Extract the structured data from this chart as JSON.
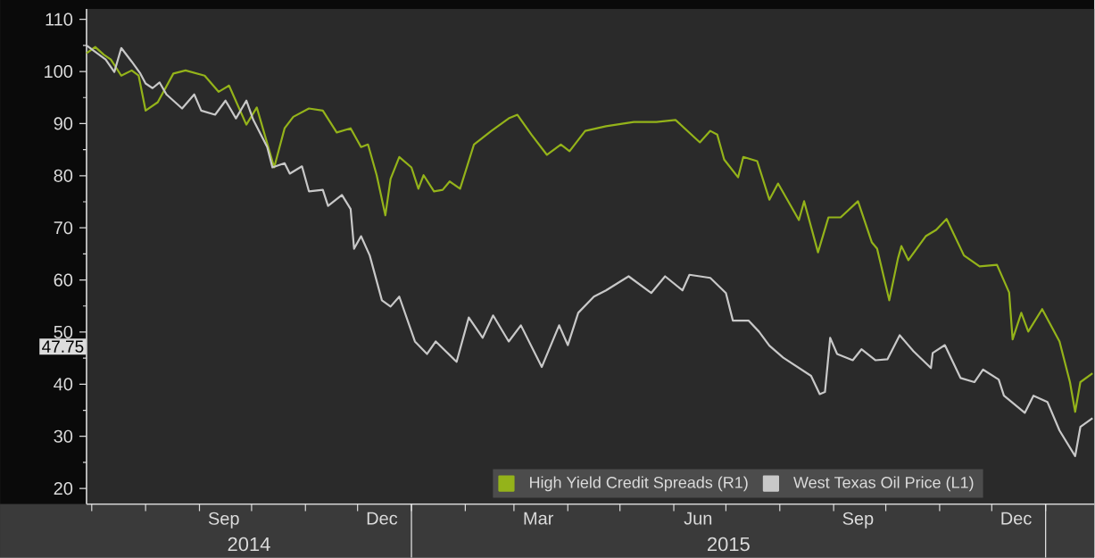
{
  "chart_data": {
    "type": "line",
    "legend": "bottom right",
    "xlim": [
      "2014-06-28",
      "2016-01-29"
    ],
    "ylim": [
      17,
      112
    ],
    "yticks": [
      20,
      30,
      40,
      50,
      60,
      70,
      80,
      90,
      100,
      110
    ],
    "xticks": [
      {
        "value": "2014-07-01",
        "label": null
      },
      {
        "value": "2014-08-01",
        "label": null
      },
      {
        "value": "2014-09-01",
        "label": null
      },
      {
        "value": "2014-10-01",
        "label": null
      },
      {
        "value": "2014-11-01",
        "label": null
      },
      {
        "value": "2014-12-01",
        "label": null
      },
      {
        "value": "2015-01-01",
        "label": null
      },
      {
        "value": "2015-02-01",
        "label": null
      },
      {
        "value": "2015-03-01",
        "label": null
      },
      {
        "value": "2015-04-01",
        "label": null
      },
      {
        "value": "2015-05-01",
        "label": null
      },
      {
        "value": "2015-06-01",
        "label": null
      },
      {
        "value": "2015-07-01",
        "label": null
      },
      {
        "value": "2015-08-01",
        "label": null
      },
      {
        "value": "2015-09-01",
        "label": null
      },
      {
        "value": "2015-10-01",
        "label": null
      },
      {
        "value": "2015-11-01",
        "label": null
      },
      {
        "value": "2015-12-01",
        "label": null
      },
      {
        "value": "2016-01-01",
        "label": null
      },
      {
        "value": "2014-09-15",
        "label": "Sep"
      },
      {
        "value": "2014-12-15",
        "label": "Dec"
      },
      {
        "value": "2015-03-15",
        "label": "Mar"
      },
      {
        "value": "2015-06-15",
        "label": "Jun"
      },
      {
        "value": "2015-09-15",
        "label": "Sep"
      },
      {
        "value": "2015-12-15",
        "label": "Dec"
      }
    ],
    "annotations": [
      "47.75",
      "2014",
      "2015"
    ],
    "series": [
      {
        "name": "High Yield Credit Spreads (R1)",
        "color": "#94b31a",
        "x": [
          "2014-06-28",
          "2014-07-03",
          "2014-07-08",
          "2014-07-12",
          "2014-07-18",
          "2014-07-24",
          "2014-07-28",
          "2014-08-01",
          "2014-08-08",
          "2014-08-17",
          "2014-08-24",
          "2014-09-04",
          "2014-09-12",
          "2014-09-18",
          "2014-09-28",
          "2014-10-04",
          "2014-10-14",
          "2014-10-20",
          "2014-10-25",
          "2014-11-03",
          "2014-11-11",
          "2014-11-19",
          "2014-11-27",
          "2014-12-03",
          "2014-12-07",
          "2014-12-12",
          "2014-12-17",
          "2014-12-20",
          "2014-12-25",
          "2015-01-01",
          "2015-01-05",
          "2015-01-08",
          "2015-01-14",
          "2015-01-19",
          "2015-01-23",
          "2015-01-29",
          "2015-02-06",
          "2015-02-16",
          "2015-02-26",
          "2015-03-03",
          "2015-03-11",
          "2015-03-20",
          "2015-03-28",
          "2015-04-02",
          "2015-04-11",
          "2015-04-23",
          "2015-05-09",
          "2015-05-22",
          "2015-06-02",
          "2015-06-16",
          "2015-06-22",
          "2015-06-26",
          "2015-06-30",
          "2015-07-08",
          "2015-07-11",
          "2015-07-19",
          "2015-07-26",
          "2015-07-31",
          "2015-08-12",
          "2015-08-15",
          "2015-08-23",
          "2015-08-29",
          "2015-09-05",
          "2015-09-15",
          "2015-09-23",
          "2015-09-26",
          "2015-10-03",
          "2015-10-08",
          "2015-10-10",
          "2015-10-14",
          "2015-10-24",
          "2015-10-30",
          "2015-11-05",
          "2015-11-15",
          "2015-11-24",
          "2015-12-04",
          "2015-12-11",
          "2015-12-13",
          "2015-12-18",
          "2015-12-22",
          "2015-12-30",
          "2016-01-09",
          "2016-01-15",
          "2016-01-18",
          "2016-01-21",
          "2016-01-28"
        ],
        "values": [
          103.5,
          104.7,
          103.2,
          102.3,
          99.2,
          100.2,
          99.2,
          92.5,
          94.1,
          99.6,
          100.2,
          99.2,
          96.1,
          97.3,
          89.8,
          93.1,
          81.6,
          89.1,
          91.3,
          92.9,
          92.5,
          88.3,
          89.1,
          85.5,
          86.0,
          80.1,
          72.4,
          79.4,
          83.6,
          81.6,
          77.5,
          80.1,
          77.0,
          77.3,
          78.9,
          77.5,
          86.0,
          88.6,
          91.0,
          91.7,
          87.9,
          84.0,
          86.0,
          84.7,
          88.6,
          89.5,
          90.3,
          90.3,
          90.7,
          86.4,
          88.6,
          87.9,
          83.1,
          79.7,
          83.6,
          82.8,
          75.4,
          78.5,
          71.5,
          75.1,
          65.3,
          72.0,
          72.0,
          75.1,
          67.2,
          66.0,
          56.1,
          64.1,
          66.5,
          63.8,
          68.4,
          69.6,
          71.7,
          64.7,
          62.6,
          62.9,
          57.6,
          48.6,
          53.7,
          50.1,
          54.4,
          48.2,
          40.4,
          34.7,
          40.4,
          42.1
        ]
      },
      {
        "name": "West Texas Oil Price (L1)",
        "color": "#c8c8c8",
        "x": [
          "2014-06-28",
          "2014-07-09",
          "2014-07-14",
          "2014-07-18",
          "2014-07-24",
          "2014-07-29",
          "2014-08-01",
          "2014-08-05",
          "2014-08-09",
          "2014-08-13",
          "2014-08-18",
          "2014-08-22",
          "2014-08-29",
          "2014-09-02",
          "2014-09-10",
          "2014-09-16",
          "2014-09-22",
          "2014-09-28",
          "2014-10-02",
          "2014-10-10",
          "2014-10-13",
          "2014-10-20",
          "2014-10-23",
          "2014-10-30",
          "2014-11-03",
          "2014-11-11",
          "2014-11-14",
          "2014-11-22",
          "2014-11-27",
          "2014-11-29",
          "2014-12-03",
          "2014-12-08",
          "2014-12-15",
          "2014-12-20",
          "2014-12-25",
          "2015-01-03",
          "2015-01-10",
          "2015-01-15",
          "2015-01-27",
          "2015-02-03",
          "2015-02-11",
          "2015-02-17",
          "2015-02-26",
          "2015-03-05",
          "2015-03-17",
          "2015-03-27",
          "2015-04-01",
          "2015-04-07",
          "2015-04-16",
          "2015-04-23",
          "2015-05-06",
          "2015-05-19",
          "2015-05-27",
          "2015-06-06",
          "2015-06-10",
          "2015-06-22",
          "2015-07-01",
          "2015-07-05",
          "2015-07-14",
          "2015-07-20",
          "2015-07-26",
          "2015-08-03",
          "2015-08-19",
          "2015-08-24",
          "2015-08-27",
          "2015-08-30",
          "2015-09-03",
          "2015-09-12",
          "2015-09-17",
          "2015-09-25",
          "2015-10-02",
          "2015-10-09",
          "2015-10-17",
          "2015-10-27",
          "2015-10-28",
          "2015-11-04",
          "2015-11-13",
          "2015-11-21",
          "2015-11-26",
          "2015-12-05",
          "2015-12-08",
          "2015-12-20",
          "2015-12-25",
          "2016-01-02",
          "2016-01-09",
          "2016-01-18",
          "2016-01-21",
          "2016-01-28"
        ],
        "values": [
          105.0,
          102.3,
          99.9,
          104.5,
          101.9,
          99.6,
          97.7,
          96.8,
          97.9,
          95.6,
          94.1,
          92.9,
          95.6,
          92.5,
          91.7,
          94.4,
          91.0,
          94.4,
          90.7,
          85.5,
          81.6,
          82.4,
          80.4,
          81.8,
          77.0,
          77.3,
          74.2,
          76.3,
          73.6,
          66.0,
          68.4,
          64.7,
          56.1,
          54.9,
          56.8,
          48.2,
          45.8,
          48.2,
          44.3,
          52.8,
          48.9,
          53.2,
          48.2,
          51.3,
          43.3,
          51.3,
          47.5,
          53.7,
          56.8,
          58.0,
          60.7,
          57.5,
          60.7,
          58.0,
          61.0,
          60.4,
          57.5,
          52.2,
          52.2,
          50.1,
          47.4,
          45.1,
          41.6,
          38.1,
          38.5,
          48.9,
          45.8,
          44.6,
          46.7,
          44.6,
          44.8,
          49.4,
          46.3,
          43.1,
          46.0,
          47.5,
          41.2,
          40.4,
          42.8,
          40.9,
          37.8,
          34.5,
          37.8,
          36.6,
          31.1,
          26.2,
          31.8,
          33.5
        ]
      }
    ]
  }
}
